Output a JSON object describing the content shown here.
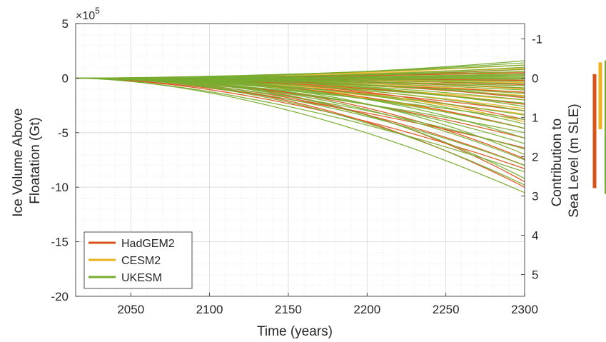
{
  "chart_data": {
    "type": "line",
    "title": "",
    "xlabel": "Time (years)",
    "ylabel": [
      "Ice Volume Above",
      "Floatation (Gt)"
    ],
    "ylabel_right": [
      "Contribution to",
      "Sea Level (m SLE)"
    ],
    "xlim": [
      2015,
      2300
    ],
    "ylim": [
      -20,
      5
    ],
    "y_exponent_label": "×10",
    "y_exponent_power": "5",
    "xticks": [
      "2050",
      "2100",
      "2150",
      "2200",
      "2250",
      "2300"
    ],
    "xtick_values": [
      2050,
      2100,
      2150,
      2200,
      2250,
      2300
    ],
    "yticks": [
      "5",
      "0",
      "-5",
      "-10",
      "-15",
      "-20"
    ],
    "ytick_values": [
      5,
      0,
      -5,
      -10,
      -15,
      -20
    ],
    "y2ticks": [
      "-1",
      "0",
      "1",
      "2",
      "3",
      "4",
      "5"
    ],
    "y2tick_values": [
      -1,
      0,
      1,
      2,
      3,
      4,
      5
    ],
    "y2_scale_per_unit": -3.6,
    "grid": true,
    "minor_grid": true,
    "legend_position": "bottom-left",
    "series": [
      {
        "name": "HadGEM2",
        "color": "#d95319",
        "runs": [
          -0.2,
          -0.6,
          -0.9,
          -1.3,
          -1.8,
          -2.4,
          -3.0,
          -3.8,
          -4.6,
          -5.5,
          -6.4,
          -7.4,
          -8.0,
          -8.3,
          -9.5,
          -10.0,
          0.5,
          0.8
        ]
      },
      {
        "name": "CESM2",
        "color": "#edb120",
        "runs": [
          1.2,
          0.9,
          0.6,
          0.3,
          0.0,
          -0.2,
          -0.4,
          -0.7,
          -1.0,
          -1.3,
          -1.6,
          -2.0,
          -2.4,
          -2.8,
          -3.3,
          -4.0,
          -4.6
        ]
      },
      {
        "name": "UKESM",
        "color": "#77ac30",
        "runs": [
          1.6,
          1.4,
          1.2,
          1.0,
          0.8,
          0.6,
          0.4,
          0.2,
          0.0,
          -0.1,
          -0.3,
          -0.5,
          -0.7,
          -0.9,
          -1.1,
          -1.4,
          -1.7,
          -2.0,
          -2.3,
          -2.6,
          -3.0,
          -3.4,
          -3.8,
          -4.2,
          -4.6,
          -5.0,
          -5.5,
          -6.0,
          -6.5,
          -7.0,
          -7.5,
          -8.0,
          -8.6,
          -9.2,
          -9.8,
          -10.5,
          0.3,
          0.1
        ]
      }
    ],
    "range_bars_msle": [
      {
        "name": "HadGEM2",
        "color": "#d95319",
        "min": -0.1,
        "max": 2.8
      },
      {
        "name": "CESM2",
        "color": "#edb120",
        "min": -0.4,
        "max": 1.3
      },
      {
        "name": "UKESM",
        "color": "#77ac30",
        "min": -0.45,
        "max": 2.95
      }
    ]
  }
}
